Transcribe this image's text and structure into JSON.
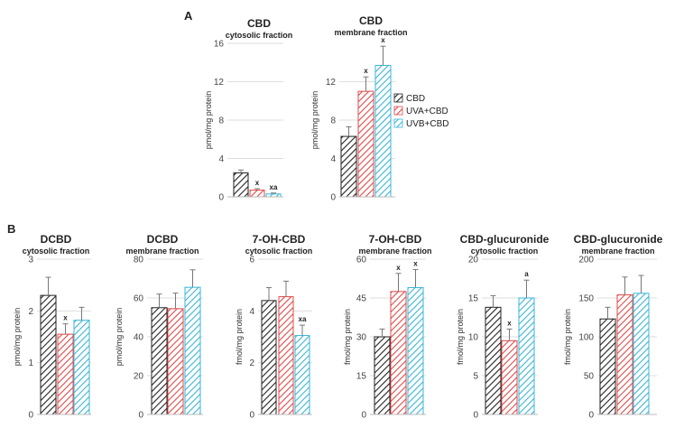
{
  "panel_labels": [
    "A",
    "B"
  ],
  "legend": {
    "position": "right of panel A membrane chart",
    "entries": [
      "CBD",
      "UVA+CBD",
      "UVB+CBD"
    ]
  },
  "colors": {
    "CBD": "#222222",
    "UVA+CBD": "#e04a4a",
    "UVB+CBD": "#3ab5d8",
    "gridline": "#dddddd"
  },
  "chart_data": [
    {
      "type": "bar",
      "title": "CBD",
      "subtitle": "cytosolic fraction",
      "ylabel": "pmol/mg protein",
      "ylim": [
        0,
        16
      ],
      "yticks": [
        0,
        4,
        8,
        12,
        16
      ],
      "grid": true,
      "series": [
        {
          "name": "CBD",
          "value": 2.5,
          "error": 0.3,
          "annotation": ""
        },
        {
          "name": "UVA+CBD",
          "value": 0.7,
          "error": 0.15,
          "annotation": "x"
        },
        {
          "name": "UVB+CBD",
          "value": 0.3,
          "error": 0.1,
          "annotation": "xa"
        }
      ]
    },
    {
      "type": "bar",
      "title": "CBD",
      "subtitle": "membrane fraction",
      "ylabel": "pmol/mg protein",
      "ylim": [
        0,
        16
      ],
      "yticks": [
        0,
        4,
        8,
        12
      ],
      "grid": true,
      "series": [
        {
          "name": "CBD",
          "value": 6.3,
          "error": 1.0,
          "annotation": ""
        },
        {
          "name": "UVA+CBD",
          "value": 11.0,
          "error": 1.5,
          "annotation": "x"
        },
        {
          "name": "UVB+CBD",
          "value": 13.7,
          "error": 2.0,
          "annotation": "x"
        }
      ]
    },
    {
      "type": "bar",
      "title": "DCBD",
      "subtitle": "cytosolic fraction",
      "ylabel": "pmol/mg protein",
      "ylim": [
        0,
        3
      ],
      "yticks": [
        0,
        1,
        2,
        3
      ],
      "grid": true,
      "series": [
        {
          "name": "CBD",
          "value": 2.3,
          "error": 0.35,
          "annotation": ""
        },
        {
          "name": "UVA+CBD",
          "value": 1.55,
          "error": 0.2,
          "annotation": "x"
        },
        {
          "name": "UVB+CBD",
          "value": 1.82,
          "error": 0.25,
          "annotation": ""
        }
      ]
    },
    {
      "type": "bar",
      "title": "DCBD",
      "subtitle": "membrane fraction",
      "ylabel": "pmol/mg protein",
      "ylim": [
        0,
        80
      ],
      "yticks": [
        0,
        20,
        40,
        60,
        80
      ],
      "grid": true,
      "series": [
        {
          "name": "CBD",
          "value": 55,
          "error": 7,
          "annotation": ""
        },
        {
          "name": "UVA+CBD",
          "value": 54.5,
          "error": 8,
          "annotation": ""
        },
        {
          "name": "UVB+CBD",
          "value": 65.5,
          "error": 9,
          "annotation": ""
        }
      ]
    },
    {
      "type": "bar",
      "title": "7-OH-CBD",
      "subtitle": "cytosolic fraction",
      "ylabel": "fmol/mg protein",
      "ylim": [
        0,
        6
      ],
      "yticks": [
        0,
        2,
        4,
        6
      ],
      "grid": true,
      "series": [
        {
          "name": "CBD",
          "value": 4.4,
          "error": 0.5,
          "annotation": ""
        },
        {
          "name": "UVA+CBD",
          "value": 4.55,
          "error": 0.6,
          "annotation": ""
        },
        {
          "name": "UVB+CBD",
          "value": 3.05,
          "error": 0.4,
          "annotation": "xa"
        }
      ]
    },
    {
      "type": "bar",
      "title": "7-OH-CBD",
      "subtitle": "membrane fraction",
      "ylabel": "fmol/mg protein",
      "ylim": [
        0,
        60
      ],
      "yticks": [
        0,
        15,
        30,
        45,
        60
      ],
      "grid": true,
      "series": [
        {
          "name": "CBD",
          "value": 30,
          "error": 3,
          "annotation": ""
        },
        {
          "name": "UVA+CBD",
          "value": 47.5,
          "error": 7,
          "annotation": "x"
        },
        {
          "name": "UVB+CBD",
          "value": 49,
          "error": 7,
          "annotation": "x"
        }
      ]
    },
    {
      "type": "bar",
      "title": "CBD-glucuronide",
      "subtitle": "cytosolic fraction",
      "ylabel": "fmol/mg protein",
      "ylim": [
        0,
        20
      ],
      "yticks": [
        0,
        5,
        10,
        15,
        20
      ],
      "grid": true,
      "series": [
        {
          "name": "CBD",
          "value": 13.8,
          "error": 1.5,
          "annotation": ""
        },
        {
          "name": "UVA+CBD",
          "value": 9.5,
          "error": 1.5,
          "annotation": "x"
        },
        {
          "name": "UVB+CBD",
          "value": 15,
          "error": 2.3,
          "annotation": "a"
        }
      ]
    },
    {
      "type": "bar",
      "title": "CBD-glucuronide",
      "subtitle": "membrane fraction",
      "ylabel": "fmol/mg protein",
      "ylim": [
        0,
        200
      ],
      "yticks": [
        0,
        50,
        100,
        150,
        200
      ],
      "grid": true,
      "series": [
        {
          "name": "CBD",
          "value": 123,
          "error": 15,
          "annotation": ""
        },
        {
          "name": "UVA+CBD",
          "value": 154,
          "error": 23,
          "annotation": ""
        },
        {
          "name": "UVB+CBD",
          "value": 156,
          "error": 23,
          "annotation": ""
        }
      ]
    }
  ]
}
